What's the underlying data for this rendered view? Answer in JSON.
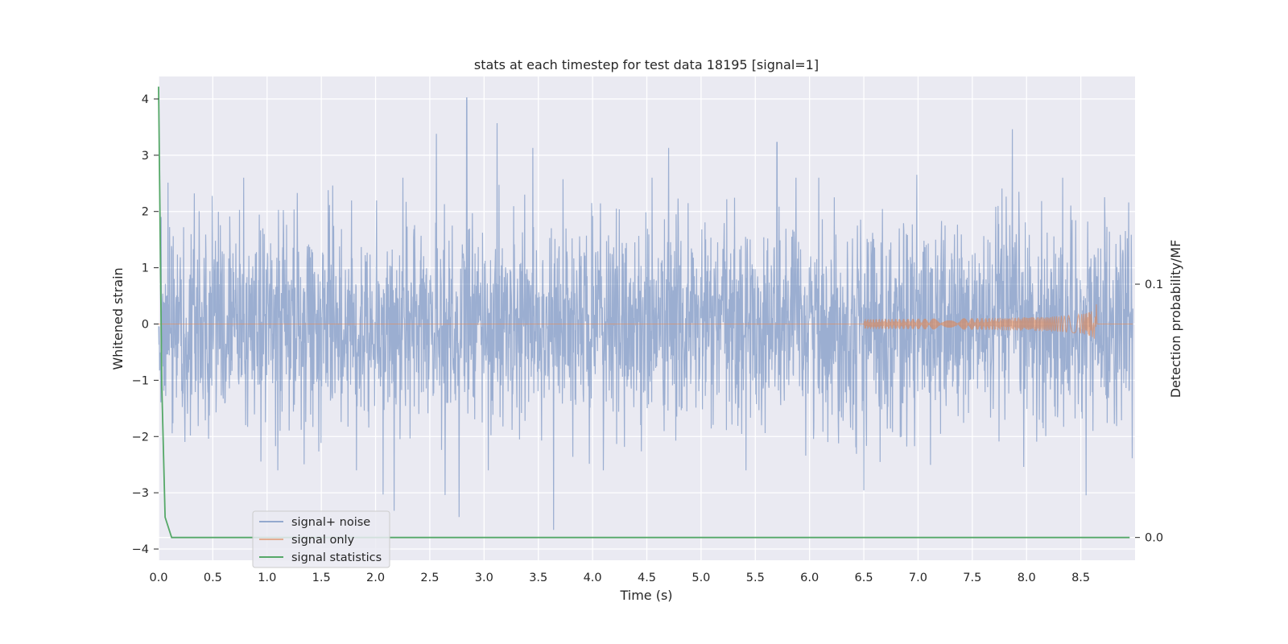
{
  "chart_data": {
    "type": "line",
    "title": "stats at each timestep for test data 18195 [signal=1]",
    "xlabel": "Time (s)",
    "ylabel": "Whitened strain",
    "ylabel_right": "Detection probability/MF",
    "xlim": [
      0.0,
      9.0
    ],
    "ylim": [
      -4.2,
      4.4
    ],
    "ylim_right": [
      -0.009,
      0.182
    ],
    "x_ticks": [
      "0.0",
      "0.5",
      "1.0",
      "1.5",
      "2.0",
      "2.5",
      "3.0",
      "3.5",
      "4.0",
      "4.5",
      "5.0",
      "5.5",
      "6.0",
      "6.5",
      "7.0",
      "7.5",
      "8.0",
      "8.5"
    ],
    "y_ticks": [
      "−4",
      "−3",
      "−2",
      "−1",
      "0",
      "1",
      "2",
      "3",
      "4"
    ],
    "y_ticks_right": [
      "0.0",
      "0.1"
    ],
    "grid": true,
    "legend_position": "lower-left",
    "series": [
      {
        "name": "signal+ noise",
        "color": "#4c72b0",
        "axis": "left",
        "description_values": {
          "typical_range": [
            -1.5,
            1.5
          ],
          "peaks_positive": [
            [
              2.84,
              4.02
            ],
            [
              3.12,
              3.57
            ],
            [
              2.56,
              3.38
            ],
            [
              5.7,
              3.23
            ],
            [
              7.87,
              3.38
            ],
            [
              3.45,
              3.13
            ],
            [
              4.7,
              3.13
            ]
          ],
          "peaks_negative": [
            [
              3.64,
              -3.66
            ],
            [
              2.77,
              -3.43
            ],
            [
              2.64,
              -3.04
            ],
            [
              2.17,
              -3.32
            ],
            [
              2.07,
              -3.03
            ],
            [
              8.55,
              -2.88
            ],
            [
              6.5,
              -2.88
            ]
          ]
        }
      },
      {
        "name": "signal only",
        "color": "#dd8452",
        "axis": "left",
        "chirp_start": 6.5,
        "chirp_peak_time": 8.65,
        "chirp_peak_amplitude": 0.62
      },
      {
        "name": "signal statistics",
        "color": "#55a868",
        "axis": "right",
        "x": [
          0.0,
          0.03,
          0.06,
          0.12,
          0.2,
          1.0,
          3.0,
          6.0,
          8.95
        ],
        "y": [
          0.178,
          0.06,
          0.008,
          0.0,
          0.0,
          0.0,
          0.0,
          0.0,
          0.0
        ]
      }
    ]
  }
}
